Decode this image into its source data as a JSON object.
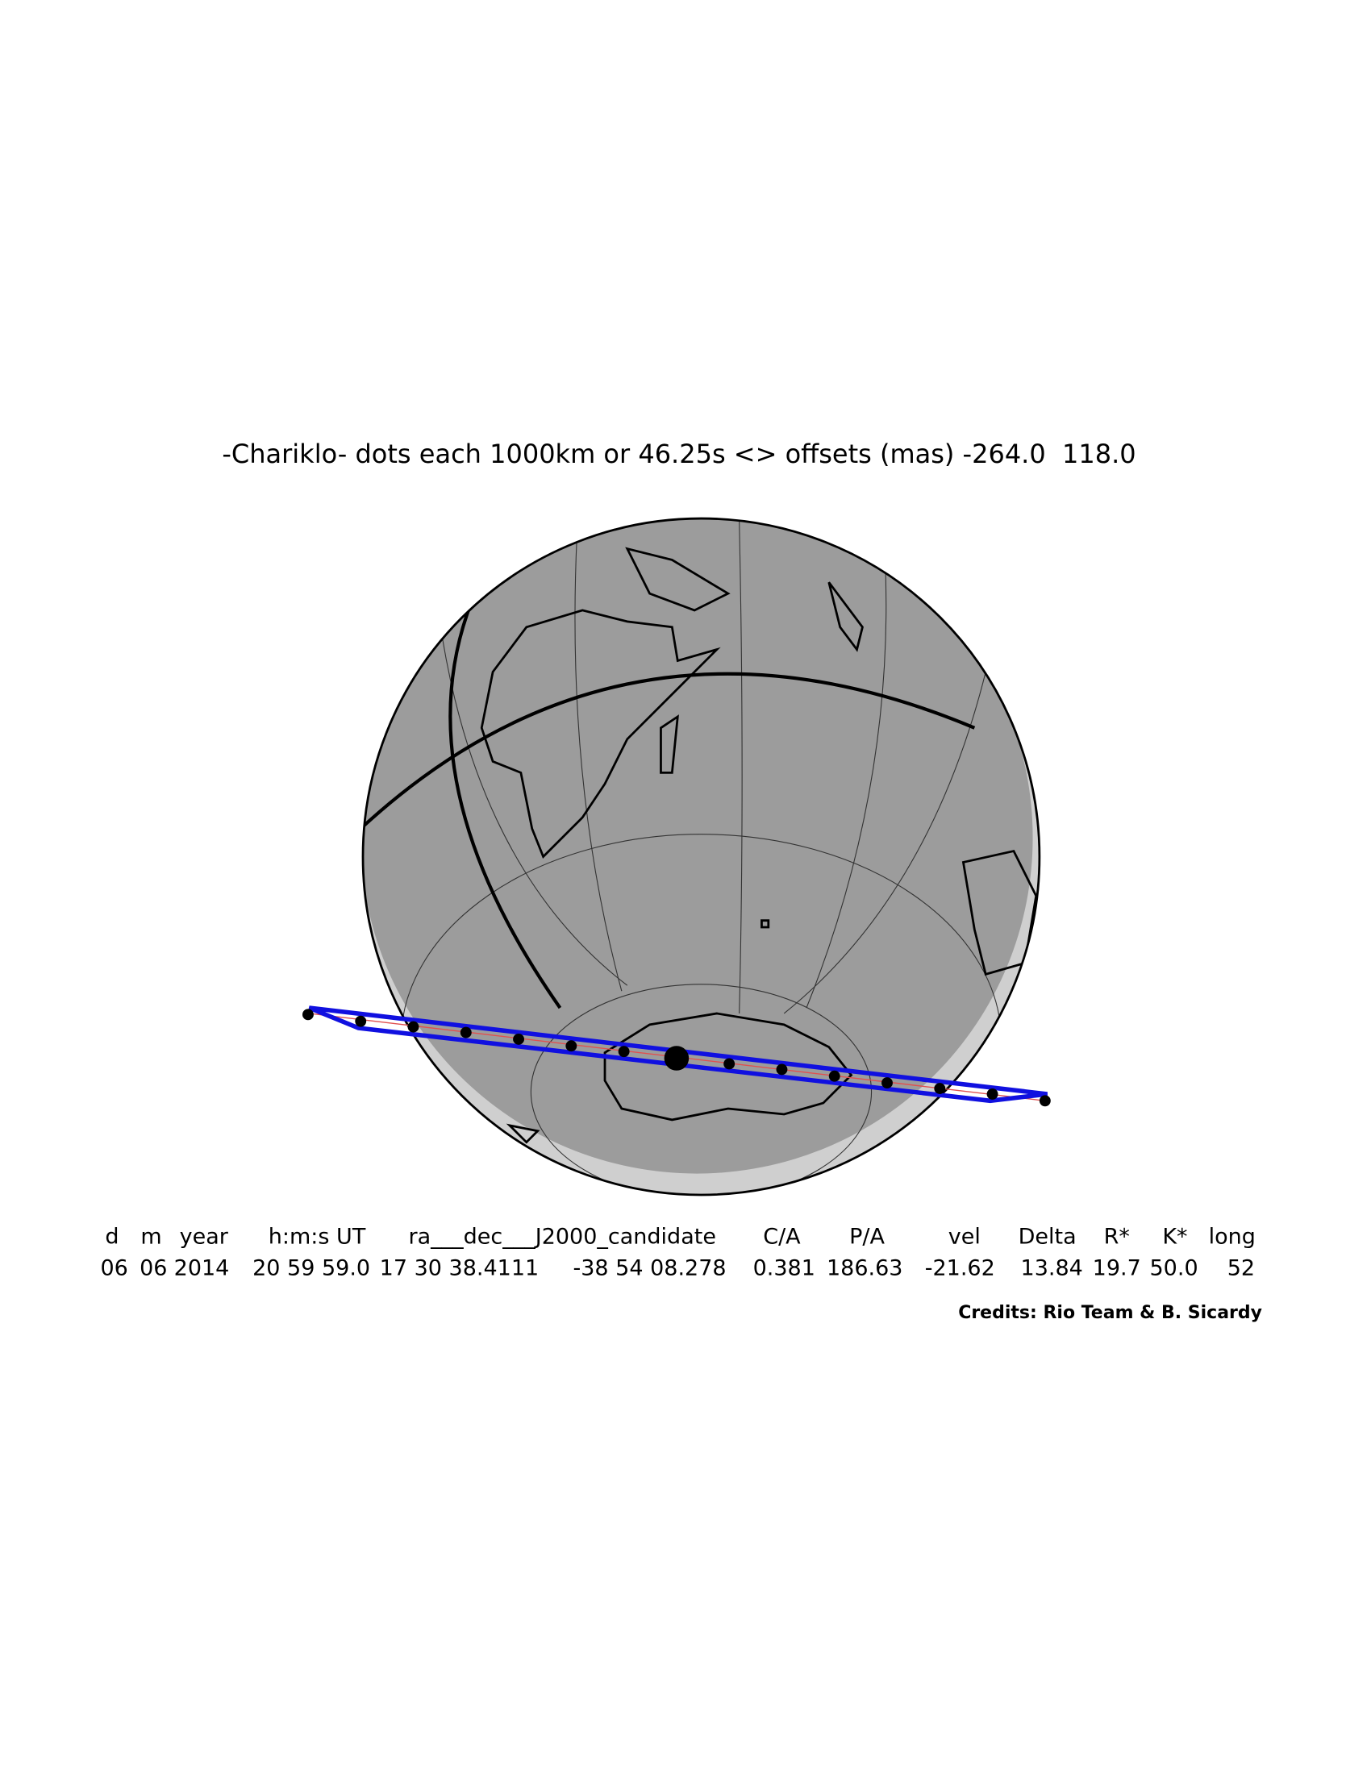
{
  "title": "-Chariklo- dots each 1000km or 46.25s <> offsets (mas) -264.0  118.0",
  "table": {
    "headers": [
      "d",
      "m",
      "year",
      "h:m:s UT",
      "ra___dec___J2000_candidate",
      "C/A",
      "P/A",
      "vel",
      "Delta",
      "R*",
      "K*",
      "long"
    ],
    "rows": [
      [
        "06",
        "06",
        "2014",
        "20 59 59.0",
        "17 30 38.4111",
        "-38 54 08.278",
        "0.381",
        "186.63",
        "-21.62",
        "13.84",
        "19.7",
        "50.0",
        "52"
      ]
    ]
  },
  "credits": "Credits: Rio Team & B. Sicardy"
}
